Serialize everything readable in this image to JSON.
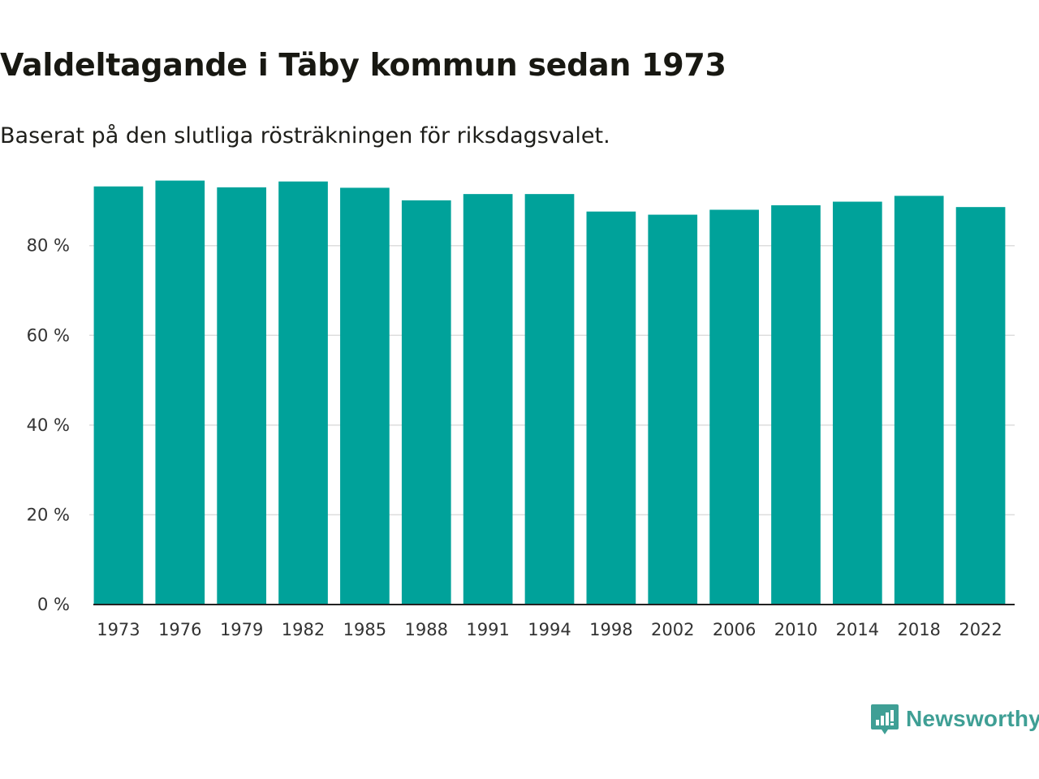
{
  "header": {
    "title": "Valdeltagande i Täby kommun sedan 1973",
    "subtitle": "Baserat på den slutliga rösträkningen för riksdagsvalet."
  },
  "brand": {
    "name": "Newsworthy",
    "logo_icon": "bar-chart-speech-bubble-icon",
    "color": "#3f9f95"
  },
  "colors": {
    "bar": "#00a29a",
    "grid": "#dddddd",
    "axis": "#222222"
  },
  "chart_data": {
    "type": "bar",
    "title": "Valdeltagande i Täby kommun sedan 1973",
    "subtitle": "Baserat på den slutliga rösträkningen för riksdagsvalet.",
    "xlabel": "",
    "ylabel": "",
    "categories": [
      "1973",
      "1976",
      "1979",
      "1982",
      "1985",
      "1988",
      "1991",
      "1994",
      "1998",
      "2002",
      "2006",
      "2010",
      "2014",
      "2018",
      "2022"
    ],
    "values": [
      93.2,
      94.5,
      93.0,
      94.3,
      92.9,
      90.1,
      91.5,
      91.5,
      87.6,
      86.9,
      88.0,
      89.0,
      89.8,
      91.1,
      88.6
    ],
    "ylim": [
      0,
      94.6
    ],
    "yticks": [
      0,
      20,
      40,
      60,
      80
    ],
    "ytick_labels": [
      "0 %",
      "20 %",
      "40 %",
      "60 %",
      "80 %"
    ],
    "grid": true,
    "legend": "none"
  }
}
